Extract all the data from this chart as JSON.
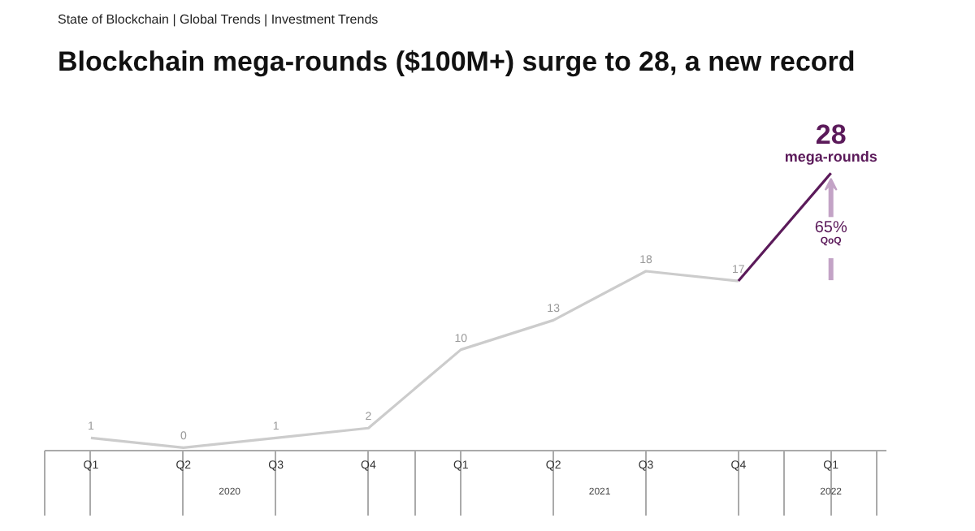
{
  "chart_data": {
    "type": "line",
    "subtitle": "State of Blockchain | Global Trends | Investment Trends",
    "title": "Blockchain mega-rounds ($100M+) surge to 28, a new record",
    "categories": [
      "Q1",
      "Q2",
      "Q3",
      "Q4",
      "Q1",
      "Q2",
      "Q3",
      "Q4",
      "Q1"
    ],
    "series": [
      {
        "color": "#cccccc",
        "values": [
          1,
          0,
          1,
          2,
          10,
          13,
          18,
          17,
          null
        ],
        "value_labels": [
          "1",
          "0",
          "1",
          "2",
          "10",
          "13",
          "18",
          "17",
          null
        ]
      },
      {
        "color": "#5b1a5a",
        "values": [
          null,
          null,
          null,
          null,
          null,
          null,
          null,
          17,
          28
        ],
        "value_labels": [
          null,
          null,
          null,
          null,
          null,
          null,
          null,
          null,
          "28"
        ]
      }
    ],
    "annotations": [
      "mega-rounds",
      "65%",
      "QoQ",
      "2020",
      "2021",
      "2022"
    ],
    "marker": "none",
    "line_style": "solid",
    "grid": false
  }
}
